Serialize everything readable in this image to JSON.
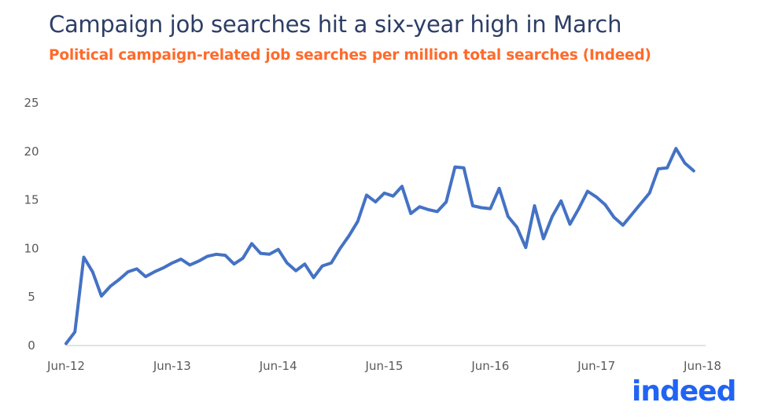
{
  "header": {
    "title": "Campaign job searches hit a six-year high in March",
    "subtitle": "Political campaign-related job searches per million total searches (Indeed)"
  },
  "logo": {
    "text": "indeed",
    "color": "#2164f3"
  },
  "colors": {
    "line": "#4472c4",
    "title": "#2d3e66",
    "subtitle": "#ff6a2b",
    "axis": "#d9d9d9"
  },
  "chart_data": {
    "type": "line",
    "title": "Campaign job searches hit a six-year high in March",
    "subtitle": "Political campaign-related job searches per million total searches (Indeed)",
    "xlabel": "",
    "ylabel": "",
    "ylim": [
      0,
      25
    ],
    "yticks": [
      0,
      5,
      10,
      15,
      20,
      25
    ],
    "xtick_labels": [
      "Jun-12",
      "Jun-13",
      "Jun-14",
      "Jun-15",
      "Jun-16",
      "Jun-17",
      "Jun-18"
    ],
    "grid": false,
    "legend": null,
    "series": [
      {
        "name": "Campaign-related job searches per million",
        "x": [
          "Jun-12",
          "Jul-12",
          "Aug-12",
          "Sep-12",
          "Oct-12",
          "Nov-12",
          "Dec-12",
          "Jan-13",
          "Feb-13",
          "Mar-13",
          "Apr-13",
          "May-13",
          "Jun-13",
          "Jul-13",
          "Aug-13",
          "Sep-13",
          "Oct-13",
          "Nov-13",
          "Dec-13",
          "Jan-14",
          "Feb-14",
          "Mar-14",
          "Apr-14",
          "May-14",
          "Jun-14",
          "Jul-14",
          "Aug-14",
          "Sep-14",
          "Oct-14",
          "Nov-14",
          "Dec-14",
          "Jan-15",
          "Feb-15",
          "Mar-15",
          "Apr-15",
          "May-15",
          "Jun-15",
          "Jul-15",
          "Aug-15",
          "Sep-15",
          "Oct-15",
          "Nov-15",
          "Dec-15",
          "Jan-16",
          "Feb-16",
          "Mar-16",
          "Apr-16",
          "May-16",
          "Jun-16",
          "Jul-16",
          "Aug-16",
          "Sep-16",
          "Oct-16",
          "Nov-16",
          "Dec-16",
          "Jan-17",
          "Feb-17",
          "Mar-17",
          "Apr-17",
          "May-17",
          "Jun-17",
          "Jul-17",
          "Aug-17",
          "Sep-17",
          "Oct-17",
          "Nov-17",
          "Dec-17",
          "Jan-18",
          "Feb-18",
          "Mar-18",
          "Apr-18",
          "May-18"
        ],
        "values": [
          0.2,
          1.4,
          9.1,
          7.6,
          5.1,
          6.1,
          6.8,
          7.6,
          7.9,
          7.1,
          7.6,
          8.0,
          8.5,
          8.9,
          8.3,
          8.7,
          9.2,
          9.4,
          9.3,
          8.4,
          9.0,
          10.5,
          9.5,
          9.4,
          9.9,
          8.5,
          7.7,
          8.4,
          7.0,
          8.2,
          8.5,
          10.0,
          11.3,
          12.8,
          15.5,
          14.8,
          15.7,
          15.4,
          16.4,
          13.6,
          14.3,
          14.0,
          13.8,
          14.8,
          18.4,
          18.3,
          14.4,
          14.2,
          14.1,
          16.2,
          13.3,
          12.2,
          10.1,
          14.4,
          11.0,
          13.3,
          14.9,
          12.5,
          14.1,
          15.9,
          15.3,
          14.5,
          13.2,
          12.4,
          13.5,
          14.6,
          15.7,
          18.2,
          18.3,
          20.3,
          18.8,
          18.0
        ]
      }
    ]
  }
}
